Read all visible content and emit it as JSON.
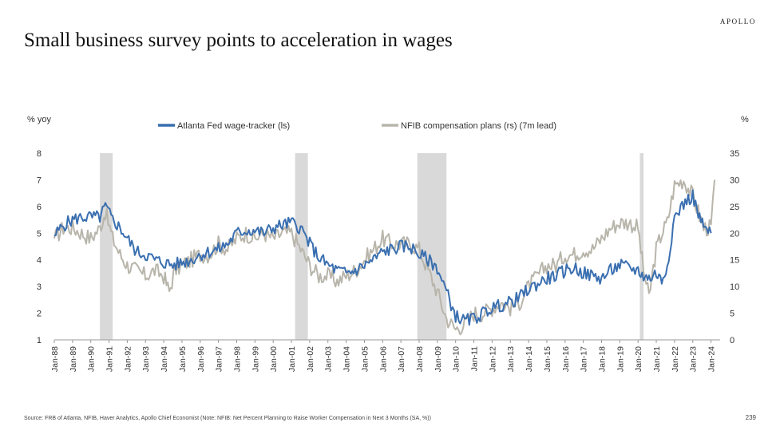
{
  "brand": "APOLLO",
  "title": "Small business survey points to acceleration in wages",
  "footer": {
    "source": "Source: FRB of Atlanta, NFIB, Haver Analytics, Apollo Chief Economist (Note: NFIB: Net Percent Planning to Raise Worker Compensation in Next 3 Months (SA, %))",
    "page_number": "239"
  },
  "colors": {
    "series1": "#3a6fb0",
    "series2": "#b8b5ab",
    "recession": "#d9d9d9"
  },
  "chart_data": {
    "type": "line",
    "left_axis_label": "% yoy",
    "right_axis_label": "%",
    "left_ylim": [
      1,
      8
    ],
    "left_ticks": [
      "1",
      "2",
      "3",
      "4",
      "5",
      "6",
      "7",
      "8"
    ],
    "right_ylim": [
      0,
      35
    ],
    "right_ticks": [
      "0",
      "5",
      "10",
      "15",
      "20",
      "25",
      "30",
      "35"
    ],
    "x_range": [
      1988.0,
      2024.5
    ],
    "x_ticks": [
      "Jan-88",
      "Jan-89",
      "Jan-90",
      "Jan-91",
      "Jan-92",
      "Jan-93",
      "Jan-94",
      "Jan-95",
      "Jan-96",
      "Jan-97",
      "Jan-98",
      "Jan-99",
      "Jan-00",
      "Jan-01",
      "Jan-02",
      "Jan-03",
      "Jan-04",
      "Jan-05",
      "Jan-06",
      "Jan-07",
      "Jan-08",
      "Jan-09",
      "Jan-10",
      "Jan-11",
      "Jan-12",
      "Jan-13",
      "Jan-14",
      "Jan-15",
      "Jan-16",
      "Jan-17",
      "Jan-18",
      "Jan-19",
      "Jan-20",
      "Jan-21",
      "Jan-22",
      "Jan-23",
      "Jan-24"
    ],
    "recessions": [
      [
        1990.5,
        1991.2
      ],
      [
        2001.2,
        2001.9
      ],
      [
        2007.9,
        2009.5
      ],
      [
        2020.1,
        2020.3
      ]
    ],
    "series": [
      {
        "name": "Atlanta Fed wage-tracker (ls)",
        "axis": "left",
        "x": [
          1988.0,
          1988.5,
          1989.0,
          1989.5,
          1990.0,
          1990.5,
          1990.8,
          1991.2,
          1991.6,
          1992.0,
          1992.5,
          1993.0,
          1993.5,
          1994.0,
          1994.5,
          1995.0,
          1995.5,
          1996.0,
          1996.5,
          1997.0,
          1997.5,
          1998.0,
          1998.5,
          1999.0,
          1999.5,
          2000.0,
          2000.5,
          2001.0,
          2001.5,
          2002.0,
          2002.5,
          2003.0,
          2003.5,
          2004.0,
          2004.5,
          2005.0,
          2005.5,
          2006.0,
          2006.5,
          2007.0,
          2007.5,
          2008.0,
          2008.5,
          2009.0,
          2009.5,
          2010.0,
          2010.5,
          2011.0,
          2011.5,
          2012.0,
          2012.5,
          2013.0,
          2013.5,
          2014.0,
          2014.5,
          2015.0,
          2015.5,
          2016.0,
          2016.5,
          2017.0,
          2017.5,
          2018.0,
          2018.5,
          2019.0,
          2019.5,
          2020.0,
          2020.3,
          2020.6,
          2021.0,
          2021.3,
          2021.6,
          2022.0,
          2022.5,
          2023.0,
          2023.3,
          2023.6,
          2024.0
        ],
        "values": [
          4.9,
          5.3,
          5.5,
          5.6,
          5.6,
          5.6,
          6.0,
          5.5,
          5.2,
          4.8,
          4.3,
          4.2,
          4.0,
          3.9,
          3.8,
          3.9,
          4.0,
          4.2,
          4.3,
          4.4,
          4.6,
          5.0,
          5.1,
          5.1,
          5.0,
          5.2,
          5.3,
          5.4,
          5.2,
          4.6,
          4.1,
          3.8,
          3.6,
          3.5,
          3.6,
          3.8,
          4.0,
          4.3,
          4.4,
          4.5,
          4.5,
          4.2,
          4.0,
          3.7,
          2.8,
          1.9,
          1.7,
          1.8,
          2.0,
          2.2,
          2.3,
          2.4,
          2.6,
          2.9,
          3.1,
          3.3,
          3.4,
          3.6,
          3.7,
          3.5,
          3.4,
          3.3,
          3.6,
          3.8,
          3.7,
          3.6,
          3.4,
          3.3,
          3.5,
          3.2,
          3.8,
          5.6,
          6.1,
          6.4,
          5.7,
          5.2,
          5.0
        ]
      },
      {
        "name": "NFIB compensation plans (rs) (7m lead)",
        "axis": "right",
        "x": [
          1988.0,
          1988.5,
          1989.0,
          1989.5,
          1990.0,
          1990.5,
          1990.8,
          1991.2,
          1991.6,
          1992.0,
          1992.5,
          1993.0,
          1993.5,
          1994.0,
          1994.3,
          1994.6,
          1995.0,
          1995.5,
          1996.0,
          1996.5,
          1997.0,
          1997.5,
          1998.0,
          1998.5,
          1999.0,
          1999.5,
          2000.0,
          2000.5,
          2001.0,
          2001.5,
          2002.0,
          2002.5,
          2003.0,
          2003.5,
          2004.0,
          2004.5,
          2005.0,
          2005.5,
          2006.0,
          2006.5,
          2007.0,
          2007.5,
          2008.0,
          2008.5,
          2009.0,
          2009.5,
          2010.0,
          2010.5,
          2011.0,
          2011.5,
          2012.0,
          2012.5,
          2013.0,
          2013.5,
          2014.0,
          2014.5,
          2015.0,
          2015.5,
          2016.0,
          2016.5,
          2017.0,
          2017.5,
          2018.0,
          2018.5,
          2019.0,
          2019.5,
          2020.0,
          2020.3,
          2020.6,
          2021.0,
          2021.3,
          2021.6,
          2022.0,
          2022.5,
          2023.0,
          2023.3,
          2023.6,
          2024.0,
          2024.2
        ],
        "values": [
          19,
          21,
          21,
          20,
          19,
          21,
          24,
          19,
          16,
          14,
          13,
          12,
          13,
          12,
          9,
          13,
          14,
          15,
          16,
          16,
          18,
          17,
          19,
          20,
          19,
          20,
          19,
          20,
          20,
          17,
          14,
          12,
          12,
          11,
          12,
          13,
          15,
          17,
          19,
          18,
          18,
          18,
          17,
          13,
          9,
          4,
          2,
          3,
          5,
          5,
          6,
          7,
          6,
          7,
          10,
          12,
          14,
          14,
          16,
          16,
          17,
          17,
          19,
          21,
          22,
          22,
          21,
          13,
          8,
          17,
          20,
          22,
          29,
          30,
          27,
          24,
          21,
          21,
          30
        ]
      }
    ]
  }
}
